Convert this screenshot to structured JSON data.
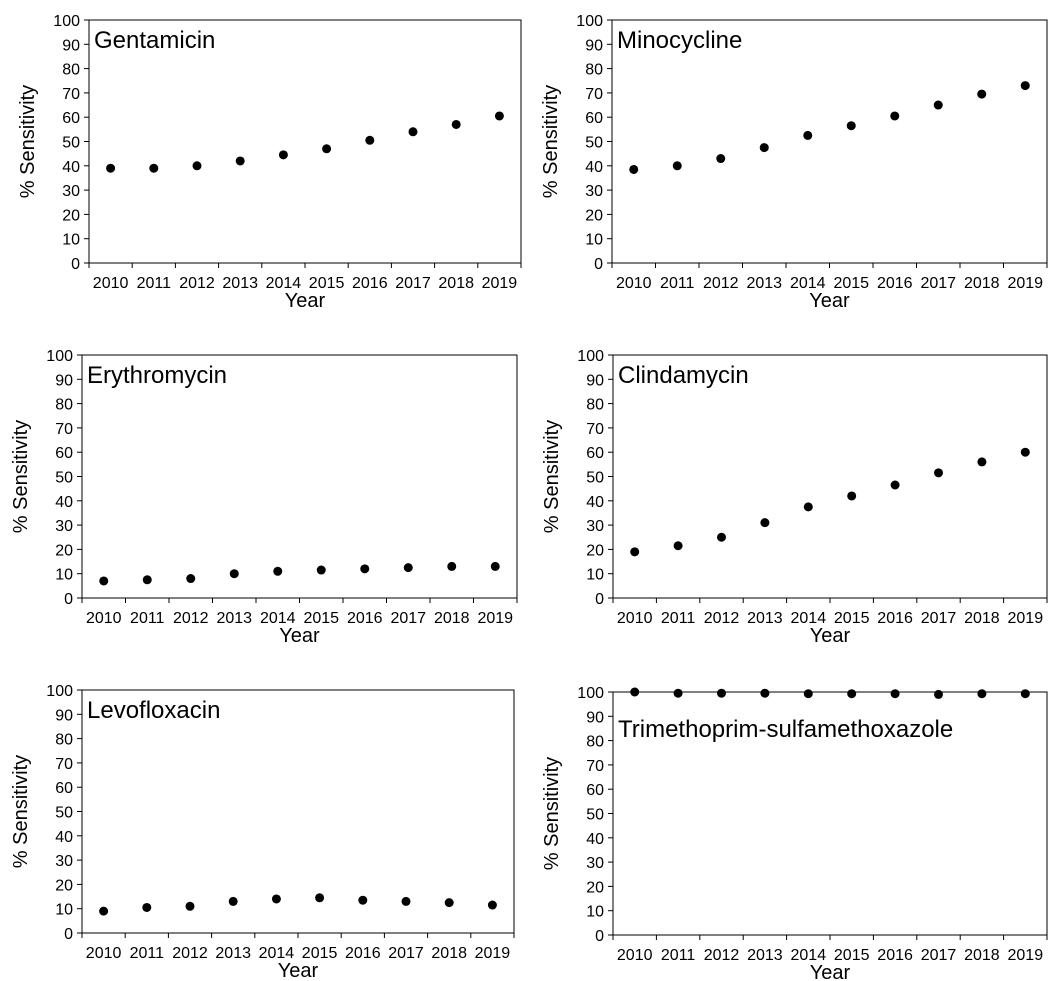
{
  "colors": {
    "marker": "#000000",
    "axis": "#000000",
    "background": "#ffffff"
  },
  "chart_data": [
    {
      "type": "scatter",
      "title": "Gentamicin",
      "xlabel": "Year",
      "ylabel": "% Sensitivity",
      "categories": [
        "2010",
        "2011",
        "2012",
        "2013",
        "2014",
        "2015",
        "2016",
        "2017",
        "2018",
        "2019"
      ],
      "values": [
        39,
        39,
        40,
        42,
        44.5,
        47,
        50.5,
        54,
        57,
        60.5
      ],
      "ylim": [
        0,
        100
      ],
      "yticks": [
        "0",
        "10",
        "20",
        "30",
        "40",
        "50",
        "60",
        "70",
        "80",
        "90",
        "100"
      ],
      "grid": false,
      "legend": "none"
    },
    {
      "type": "scatter",
      "title": "Minocycline",
      "xlabel": "Year",
      "ylabel": "% Sensitivity",
      "categories": [
        "2010",
        "2011",
        "2012",
        "2013",
        "2014",
        "2015",
        "2016",
        "2017",
        "2018",
        "2019"
      ],
      "values": [
        38.5,
        40,
        43,
        47.5,
        52.5,
        56.5,
        60.5,
        65,
        69.5,
        73
      ],
      "ylim": [
        0,
        100
      ],
      "yticks": [
        "0",
        "10",
        "20",
        "30",
        "40",
        "50",
        "60",
        "70",
        "80",
        "90",
        "100"
      ],
      "grid": false,
      "legend": "none"
    },
    {
      "type": "scatter",
      "title": "Erythromycin",
      "xlabel": "Year",
      "ylabel": "% Sensitivity",
      "categories": [
        "2010",
        "2011",
        "2012",
        "2013",
        "2014",
        "2015",
        "2016",
        "2017",
        "2018",
        "2019"
      ],
      "values": [
        7,
        7.5,
        8,
        10,
        11,
        11.5,
        12,
        12.5,
        13,
        13
      ],
      "ylim": [
        0,
        100
      ],
      "yticks": [
        "0",
        "10",
        "20",
        "30",
        "40",
        "50",
        "60",
        "70",
        "80",
        "90",
        "100"
      ],
      "grid": false,
      "legend": "none"
    },
    {
      "type": "scatter",
      "title": "Clindamycin",
      "xlabel": "Year",
      "ylabel": "% Sensitivity",
      "categories": [
        "2010",
        "2011",
        "2012",
        "2013",
        "2014",
        "2015",
        "2016",
        "2017",
        "2018",
        "2019"
      ],
      "values": [
        19,
        21.5,
        25,
        31,
        37.5,
        42,
        46.5,
        51.5,
        56,
        60
      ],
      "ylim": [
        0,
        100
      ],
      "yticks": [
        "0",
        "10",
        "20",
        "30",
        "40",
        "50",
        "60",
        "70",
        "80",
        "90",
        "100"
      ],
      "grid": false,
      "legend": "none"
    },
    {
      "type": "scatter",
      "title": "Levofloxacin",
      "xlabel": "Year",
      "ylabel": "% Sensitivity",
      "categories": [
        "2010",
        "2011",
        "2012",
        "2013",
        "2014",
        "2015",
        "2016",
        "2017",
        "2018",
        "2019"
      ],
      "values": [
        9,
        10.5,
        11,
        13,
        14,
        14.5,
        13.5,
        13,
        12.5,
        11.5
      ],
      "ylim": [
        0,
        100
      ],
      "yticks": [
        "0",
        "10",
        "20",
        "30",
        "40",
        "50",
        "60",
        "70",
        "80",
        "90",
        "100"
      ],
      "grid": false,
      "legend": "none"
    },
    {
      "type": "scatter",
      "title": "Trimethoprim-sulfamethoxazole",
      "xlabel": "Year",
      "ylabel": "% Sensitivity",
      "categories": [
        "2010",
        "2011",
        "2012",
        "2013",
        "2014",
        "2015",
        "2016",
        "2017",
        "2018",
        "2019"
      ],
      "values": [
        100,
        99.5,
        99.5,
        99.5,
        99.3,
        99.3,
        99.3,
        99,
        99.3,
        99.3
      ],
      "ylim": [
        0,
        100
      ],
      "yticks": [
        "0",
        "10",
        "20",
        "30",
        "40",
        "50",
        "60",
        "70",
        "80",
        "90",
        "100"
      ],
      "grid": false,
      "legend": "none"
    }
  ]
}
